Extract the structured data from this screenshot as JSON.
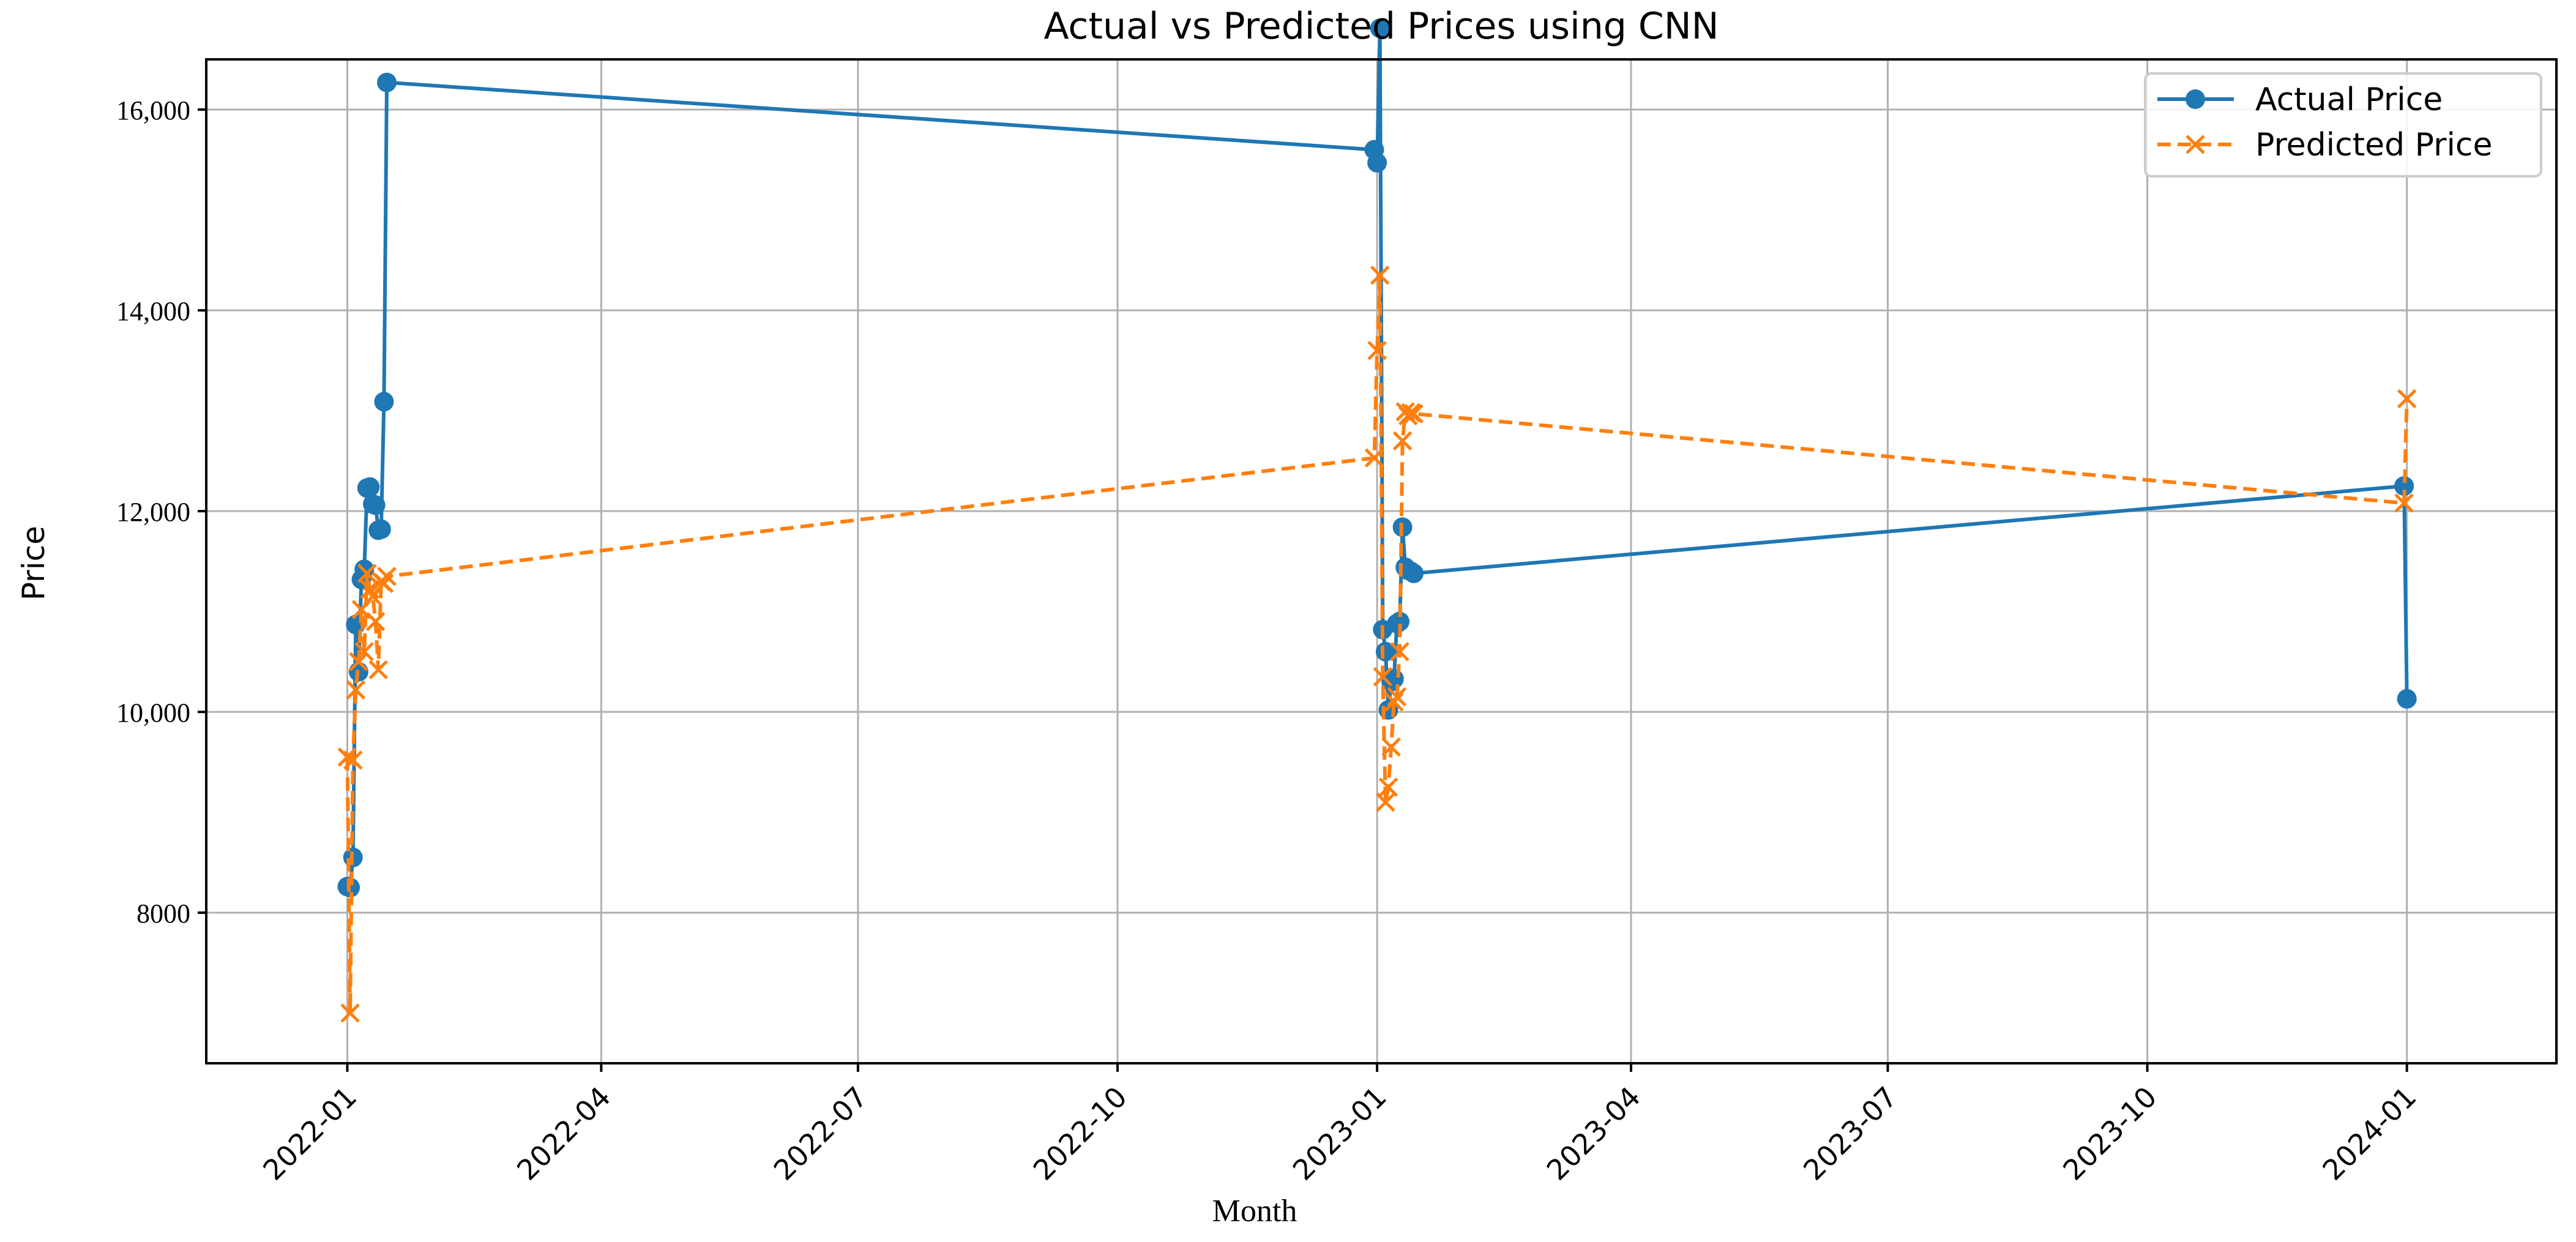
{
  "chart_data": {
    "type": "line",
    "title": "Actual vs Predicted Prices using CNN",
    "xlabel": "Month",
    "ylabel": "Price",
    "x_axis_type": "date",
    "xlim": [
      "2021-11-12",
      "2024-02-23"
    ],
    "ylim": [
      6500,
      16500
    ],
    "x_ticks": [
      "2022-01-01",
      "2022-04-01",
      "2022-07-01",
      "2022-10-01",
      "2023-01-01",
      "2023-04-01",
      "2023-07-01",
      "2023-10-01",
      "2024-01-01"
    ],
    "x_tick_labels": [
      "2022-01",
      "2022-04",
      "2022-07",
      "2022-10",
      "2023-01",
      "2023-04",
      "2023-07",
      "2023-10",
      "2024-01"
    ],
    "y_ticks": [
      8000,
      10000,
      12000,
      14000,
      16000
    ],
    "y_tick_labels": [
      "8000",
      "10,000",
      "12,000",
      "14,000",
      "16,000"
    ],
    "grid": true,
    "legend_position": "top-right",
    "series": [
      {
        "name": "Actual Price",
        "color": "#1f77b4",
        "line_style": "solid",
        "marker": "circle",
        "x": [
          "2022-01-01",
          "2022-01-02",
          "2022-01-03",
          "2022-01-04",
          "2022-01-05",
          "2022-01-06",
          "2022-01-07",
          "2022-01-08",
          "2022-01-09",
          "2022-01-10",
          "2022-01-11",
          "2022-01-12",
          "2022-01-13",
          "2022-01-14",
          "2022-01-15",
          "2022-12-31",
          "2023-01-01",
          "2023-01-02",
          "2023-01-03",
          "2023-01-04",
          "2023-01-05",
          "2023-01-06",
          "2023-01-07",
          "2023-01-08",
          "2023-01-09",
          "2023-01-10",
          "2023-01-11",
          "2023-01-12",
          "2023-01-13",
          "2023-01-14",
          "2023-12-31",
          "2024-01-01"
        ],
        "values": [
          8260,
          8250,
          8550,
          10870,
          10400,
          11320,
          11420,
          12230,
          12240,
          12070,
          12060,
          11810,
          11820,
          13090,
          16270,
          15600,
          15470,
          16810,
          10820,
          10600,
          10020,
          10300,
          10330,
          10880,
          10900,
          11840,
          11440,
          11410,
          11400,
          11380,
          12250,
          10130
        ]
      },
      {
        "name": "Predicted Price",
        "color": "#ff7f0e",
        "line_style": "dashed",
        "marker": "x",
        "x": [
          "2022-01-01",
          "2022-01-02",
          "2022-01-03",
          "2022-01-04",
          "2022-01-05",
          "2022-01-06",
          "2022-01-07",
          "2022-01-08",
          "2022-01-09",
          "2022-01-10",
          "2022-01-11",
          "2022-01-12",
          "2022-01-13",
          "2022-01-14",
          "2022-01-15",
          "2022-12-31",
          "2023-01-01",
          "2023-01-02",
          "2023-01-03",
          "2023-01-04",
          "2023-01-05",
          "2023-01-06",
          "2023-01-07",
          "2023-01-08",
          "2023-01-09",
          "2023-01-10",
          "2023-01-11",
          "2023-01-12",
          "2023-01-13",
          "2023-01-14",
          "2023-12-31",
          "2024-01-01"
        ],
        "values": [
          9550,
          7000,
          9520,
          10220,
          10500,
          11020,
          10600,
          11380,
          11220,
          11150,
          10900,
          10420,
          11300,
          11280,
          11350,
          12530,
          13600,
          14350,
          10350,
          9100,
          9250,
          9650,
          10100,
          10150,
          10600,
          12700,
          12990,
          12950,
          12980,
          12970,
          12080,
          13120
        ]
      }
    ]
  }
}
